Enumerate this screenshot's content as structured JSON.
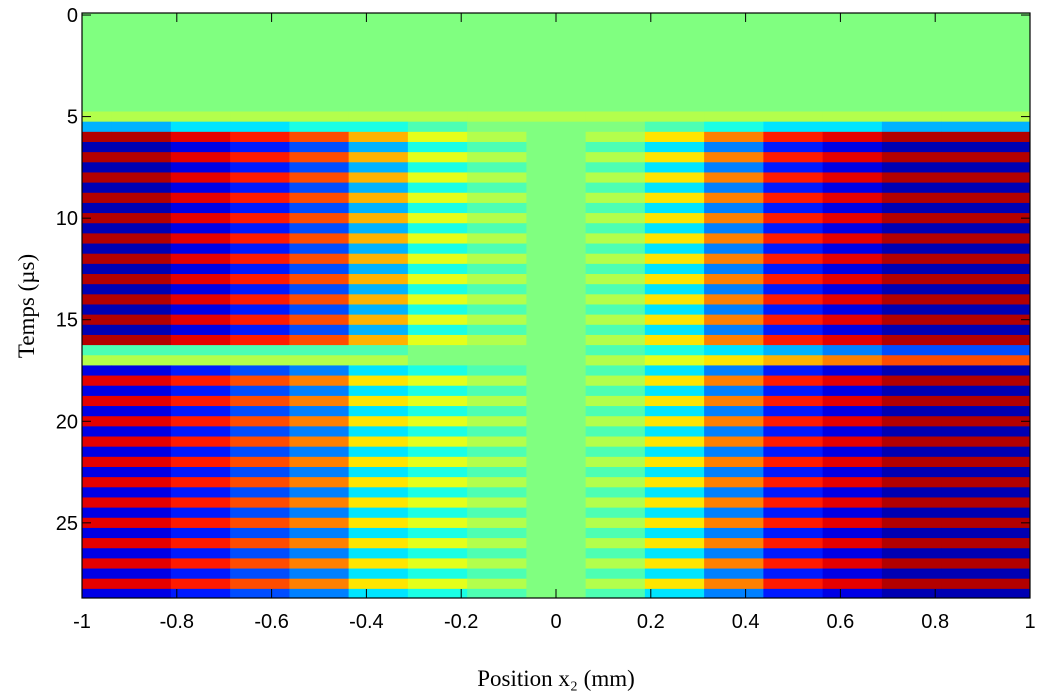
{
  "chart_data": {
    "type": "heatmap",
    "xlabel": "Position x₂ (mm)",
    "ylabel": "Temps (µs)",
    "colormap": "jet",
    "clim": [
      -1,
      1
    ],
    "xlim": [
      -1,
      1
    ],
    "ylim": [
      -0.1,
      28.7
    ],
    "y_reversed": true,
    "xticks": [
      -1,
      -0.8,
      -0.6,
      -0.4,
      -0.2,
      0,
      0.2,
      0.4,
      0.6,
      0.8,
      1
    ],
    "yticks": [
      0,
      5,
      10,
      15,
      20,
      25
    ],
    "x": [
      -1,
      -0.875,
      -0.75,
      -0.625,
      -0.5,
      -0.375,
      -0.25,
      -0.125,
      0,
      0.125,
      0.25,
      0.375,
      0.5,
      0.625,
      0.75,
      0.875,
      1
    ],
    "y": [
      0,
      0.5,
      1,
      1.5,
      2,
      2.5,
      3,
      3.5,
      4,
      4.5,
      5,
      5.5,
      6,
      6.5,
      7,
      7.5,
      8,
      8.5,
      9,
      9.5,
      10,
      10.5,
      11,
      11.5,
      12,
      12.5,
      13,
      13.5,
      14,
      14.5,
      15,
      15.5,
      16,
      16.5,
      17,
      17.5,
      18,
      18.5,
      19,
      19.5,
      20,
      20.5,
      21,
      21.5,
      22,
      22.5,
      23,
      23.5,
      24,
      24.5,
      25,
      25.5,
      26,
      26.5,
      27,
      27.5,
      28,
      28.5
    ],
    "z": [
      [
        0,
        0,
        0,
        0,
        0,
        0,
        0,
        0,
        0,
        0,
        0,
        0,
        0,
        0,
        0,
        0,
        0
      ],
      [
        0,
        0,
        0,
        0,
        0,
        0,
        0,
        0,
        0,
        0,
        0,
        0,
        0,
        0,
        0,
        0,
        0
      ],
      [
        0,
        0,
        0,
        0,
        0,
        0,
        0,
        0,
        0,
        0,
        0,
        0,
        0,
        0,
        0,
        0,
        0
      ],
      [
        0,
        0,
        0,
        0,
        0,
        0,
        0,
        0,
        0,
        0,
        0,
        0,
        0,
        0,
        0,
        0,
        0
      ],
      [
        0,
        0,
        0,
        0,
        0,
        0,
        0,
        0,
        0,
        0,
        0,
        0,
        0,
        0,
        0,
        0,
        0
      ],
      [
        0,
        0,
        0,
        0,
        0,
        0,
        0,
        0,
        0,
        0,
        0,
        0,
        0,
        0,
        0,
        0,
        0
      ],
      [
        0,
        0,
        0,
        0,
        0,
        0,
        0,
        0,
        0,
        0,
        0,
        0,
        0,
        0,
        0,
        0,
        0
      ],
      [
        0,
        0,
        0,
        0,
        0,
        0,
        0,
        0,
        0,
        0,
        0,
        0,
        0,
        0,
        0,
        0,
        0
      ],
      [
        0,
        0,
        0,
        0,
        0,
        0,
        0,
        0,
        0,
        0,
        0,
        0,
        0,
        0,
        0,
        0,
        0
      ],
      [
        0,
        0,
        0,
        0,
        0,
        0,
        0,
        0,
        0,
        0,
        0,
        0,
        0,
        0,
        0,
        0,
        0
      ],
      [
        0.1,
        0.1,
        0.1,
        0.1,
        0.1,
        0.1,
        0.1,
        0.1,
        0.1,
        0.1,
        0.1,
        0.1,
        0.1,
        0.1,
        0.1,
        0.1,
        0.1
      ],
      [
        -0.4,
        -0.4,
        -0.3,
        -0.3,
        -0.2,
        -0.2,
        -0.1,
        0,
        0,
        0,
        -0.1,
        -0.2,
        -0.3,
        -0.3,
        -0.4,
        -0.4,
        -0.4
      ],
      [
        0.9,
        0.9,
        0.8,
        0.7,
        0.6,
        0.4,
        0.2,
        0.1,
        0,
        0.1,
        0.3,
        0.5,
        0.7,
        0.8,
        0.9,
        0.9,
        0.9
      ],
      [
        -0.9,
        -0.9,
        -0.8,
        -0.7,
        -0.6,
        -0.4,
        -0.2,
        -0.1,
        0,
        -0.1,
        -0.3,
        -0.5,
        -0.7,
        -0.8,
        -0.9,
        -0.9,
        -0.9
      ],
      [
        0.9,
        0.9,
        0.8,
        0.7,
        0.6,
        0.4,
        0.2,
        0.1,
        0,
        0.1,
        0.3,
        0.5,
        0.7,
        0.8,
        0.9,
        0.9,
        0.9
      ],
      [
        -0.9,
        -0.9,
        -0.8,
        -0.7,
        -0.6,
        -0.4,
        -0.2,
        -0.1,
        0,
        -0.1,
        -0.3,
        -0.5,
        -0.7,
        -0.8,
        -0.9,
        -0.9,
        -0.9
      ],
      [
        0.9,
        0.9,
        0.8,
        0.7,
        0.6,
        0.4,
        0.2,
        0.1,
        0,
        0.1,
        0.3,
        0.5,
        0.7,
        0.8,
        0.9,
        0.9,
        0.9
      ],
      [
        -0.9,
        -0.9,
        -0.8,
        -0.7,
        -0.6,
        -0.4,
        -0.2,
        -0.1,
        0,
        -0.1,
        -0.3,
        -0.5,
        -0.7,
        -0.8,
        -0.9,
        -0.9,
        -0.9
      ],
      [
        0.9,
        0.9,
        0.8,
        0.7,
        0.6,
        0.4,
        0.2,
        0.1,
        0,
        0.1,
        0.3,
        0.5,
        0.7,
        0.8,
        0.9,
        0.9,
        0.9
      ],
      [
        -0.9,
        -0.9,
        -0.8,
        -0.7,
        -0.6,
        -0.4,
        -0.2,
        -0.1,
        0,
        -0.1,
        -0.3,
        -0.5,
        -0.7,
        -0.8,
        -0.9,
        -0.9,
        -0.9
      ],
      [
        0.9,
        0.9,
        0.8,
        0.7,
        0.6,
        0.4,
        0.2,
        0.1,
        0,
        0.1,
        0.3,
        0.5,
        0.7,
        0.8,
        0.9,
        0.9,
        0.9
      ],
      [
        -0.9,
        -0.9,
        -0.8,
        -0.7,
        -0.6,
        -0.4,
        -0.2,
        -0.1,
        0,
        -0.1,
        -0.3,
        -0.5,
        -0.7,
        -0.8,
        -0.9,
        -0.9,
        -0.9
      ],
      [
        0.9,
        0.9,
        0.8,
        0.7,
        0.6,
        0.4,
        0.2,
        0.1,
        0,
        0.1,
        0.3,
        0.5,
        0.7,
        0.8,
        0.9,
        0.9,
        0.9
      ],
      [
        -0.9,
        -0.9,
        -0.8,
        -0.7,
        -0.6,
        -0.4,
        -0.2,
        -0.1,
        0,
        -0.1,
        -0.3,
        -0.5,
        -0.7,
        -0.8,
        -0.9,
        -0.9,
        -0.9
      ],
      [
        0.9,
        0.9,
        0.8,
        0.7,
        0.6,
        0.4,
        0.2,
        0.1,
        0,
        0.1,
        0.3,
        0.5,
        0.7,
        0.8,
        0.9,
        0.9,
        0.9
      ],
      [
        -0.9,
        -0.9,
        -0.8,
        -0.7,
        -0.6,
        -0.4,
        -0.2,
        -0.1,
        0,
        -0.1,
        -0.3,
        -0.5,
        -0.7,
        -0.8,
        -0.9,
        -0.9,
        -0.9
      ],
      [
        0.9,
        0.9,
        0.8,
        0.7,
        0.6,
        0.4,
        0.2,
        0.1,
        0,
        0.1,
        0.3,
        0.5,
        0.7,
        0.8,
        0.9,
        0.9,
        0.9
      ],
      [
        -0.9,
        -0.9,
        -0.8,
        -0.7,
        -0.6,
        -0.4,
        -0.2,
        -0.1,
        0,
        -0.1,
        -0.3,
        -0.5,
        -0.7,
        -0.8,
        -0.9,
        -0.9,
        -0.9
      ],
      [
        0.9,
        0.9,
        0.8,
        0.7,
        0.6,
        0.4,
        0.2,
        0.1,
        0,
        0.1,
        0.3,
        0.5,
        0.7,
        0.8,
        0.9,
        0.9,
        0.9
      ],
      [
        -0.9,
        -0.9,
        -0.8,
        -0.7,
        -0.6,
        -0.4,
        -0.2,
        -0.1,
        0,
        -0.1,
        -0.3,
        -0.5,
        -0.7,
        -0.8,
        -0.9,
        -0.9,
        -0.9
      ],
      [
        0.9,
        0.9,
        0.8,
        0.7,
        0.6,
        0.4,
        0.2,
        0.1,
        0,
        0.1,
        0.3,
        0.5,
        0.7,
        0.8,
        0.9,
        0.9,
        0.9
      ],
      [
        -0.9,
        -0.9,
        -0.8,
        -0.7,
        -0.6,
        -0.4,
        -0.2,
        -0.1,
        0,
        -0.1,
        -0.3,
        -0.5,
        -0.7,
        -0.8,
        -0.9,
        -0.9,
        -0.9
      ],
      [
        0.9,
        0.9,
        0.8,
        0.7,
        0.6,
        0.4,
        0.2,
        0.1,
        0,
        0.1,
        0.3,
        0.5,
        0.7,
        0.8,
        0.9,
        0.9,
        0.9
      ],
      [
        -0.1,
        -0.1,
        -0.1,
        -0.1,
        -0.1,
        -0.1,
        0,
        0,
        0,
        -0.1,
        -0.2,
        -0.3,
        -0.4,
        -0.5,
        -0.6,
        -0.6,
        -0.6
      ],
      [
        0.1,
        0.1,
        0.1,
        0.1,
        0.1,
        0.1,
        0,
        0,
        0,
        0.1,
        0.2,
        0.3,
        0.4,
        0.5,
        0.6,
        0.6,
        0.6
      ],
      [
        -0.8,
        -0.8,
        -0.7,
        -0.6,
        -0.5,
        -0.3,
        -0.2,
        -0.1,
        0,
        -0.1,
        -0.3,
        -0.5,
        -0.7,
        -0.8,
        -0.9,
        -0.9,
        -0.9
      ],
      [
        0.8,
        0.8,
        0.7,
        0.6,
        0.5,
        0.3,
        0.2,
        0.1,
        0,
        0.1,
        0.3,
        0.5,
        0.7,
        0.8,
        0.9,
        0.9,
        0.9
      ],
      [
        -0.8,
        -0.8,
        -0.7,
        -0.6,
        -0.5,
        -0.3,
        -0.2,
        -0.1,
        0,
        -0.1,
        -0.3,
        -0.5,
        -0.7,
        -0.8,
        -0.9,
        -0.9,
        -0.9
      ],
      [
        0.8,
        0.8,
        0.7,
        0.6,
        0.5,
        0.3,
        0.2,
        0.1,
        0,
        0.1,
        0.3,
        0.5,
        0.7,
        0.8,
        0.9,
        0.9,
        0.9
      ],
      [
        -0.8,
        -0.8,
        -0.7,
        -0.6,
        -0.5,
        -0.3,
        -0.2,
        -0.1,
        0,
        -0.1,
        -0.3,
        -0.5,
        -0.7,
        -0.8,
        -0.9,
        -0.9,
        -0.9
      ],
      [
        0.8,
        0.8,
        0.7,
        0.6,
        0.5,
        0.3,
        0.2,
        0.1,
        0,
        0.1,
        0.3,
        0.5,
        0.7,
        0.8,
        0.9,
        0.9,
        0.9
      ],
      [
        -0.8,
        -0.8,
        -0.7,
        -0.6,
        -0.5,
        -0.3,
        -0.2,
        -0.1,
        0,
        -0.1,
        -0.3,
        -0.5,
        -0.7,
        -0.8,
        -0.9,
        -0.9,
        -0.9
      ],
      [
        0.8,
        0.8,
        0.7,
        0.6,
        0.5,
        0.3,
        0.2,
        0.1,
        0,
        0.1,
        0.3,
        0.5,
        0.7,
        0.8,
        0.9,
        0.9,
        0.9
      ],
      [
        -0.8,
        -0.8,
        -0.7,
        -0.6,
        -0.5,
        -0.3,
        -0.2,
        -0.1,
        0,
        -0.1,
        -0.3,
        -0.5,
        -0.7,
        -0.8,
        -0.9,
        -0.9,
        -0.9
      ],
      [
        0.8,
        0.8,
        0.7,
        0.6,
        0.5,
        0.3,
        0.2,
        0.1,
        0,
        0.1,
        0.3,
        0.5,
        0.7,
        0.8,
        0.9,
        0.9,
        0.9
      ],
      [
        -0.8,
        -0.8,
        -0.7,
        -0.6,
        -0.5,
        -0.3,
        -0.2,
        -0.1,
        0,
        -0.1,
        -0.3,
        -0.5,
        -0.7,
        -0.8,
        -0.9,
        -0.9,
        -0.9
      ],
      [
        0.8,
        0.8,
        0.7,
        0.6,
        0.5,
        0.3,
        0.2,
        0.1,
        0,
        0.1,
        0.3,
        0.5,
        0.7,
        0.8,
        0.9,
        0.9,
        0.9
      ],
      [
        -0.8,
        -0.8,
        -0.7,
        -0.6,
        -0.5,
        -0.3,
        -0.2,
        -0.1,
        0,
        -0.1,
        -0.3,
        -0.5,
        -0.7,
        -0.8,
        -0.9,
        -0.9,
        -0.9
      ],
      [
        0.8,
        0.8,
        0.7,
        0.6,
        0.5,
        0.3,
        0.2,
        0.1,
        0,
        0.1,
        0.3,
        0.5,
        0.7,
        0.8,
        0.9,
        0.9,
        0.9
      ],
      [
        -0.8,
        -0.8,
        -0.7,
        -0.6,
        -0.5,
        -0.3,
        -0.2,
        -0.1,
        0,
        -0.1,
        -0.3,
        -0.5,
        -0.7,
        -0.8,
        -0.9,
        -0.9,
        -0.9
      ],
      [
        0.8,
        0.8,
        0.7,
        0.6,
        0.5,
        0.3,
        0.2,
        0.1,
        0,
        0.1,
        0.3,
        0.5,
        0.7,
        0.8,
        0.9,
        0.9,
        0.9
      ],
      [
        -0.8,
        -0.8,
        -0.7,
        -0.6,
        -0.5,
        -0.3,
        -0.2,
        -0.1,
        0,
        -0.1,
        -0.3,
        -0.5,
        -0.7,
        -0.8,
        -0.9,
        -0.9,
        -0.9
      ],
      [
        0.8,
        0.8,
        0.7,
        0.6,
        0.5,
        0.3,
        0.2,
        0.1,
        0,
        0.1,
        0.3,
        0.5,
        0.7,
        0.8,
        0.9,
        0.9,
        0.9
      ],
      [
        -0.8,
        -0.8,
        -0.7,
        -0.6,
        -0.5,
        -0.3,
        -0.2,
        -0.1,
        0,
        -0.1,
        -0.3,
        -0.5,
        -0.7,
        -0.8,
        -0.9,
        -0.9,
        -0.9
      ],
      [
        0.8,
        0.8,
        0.7,
        0.6,
        0.5,
        0.3,
        0.2,
        0.1,
        0,
        0.1,
        0.3,
        0.5,
        0.7,
        0.8,
        0.9,
        0.9,
        0.9
      ],
      [
        -0.8,
        -0.8,
        -0.7,
        -0.6,
        -0.5,
        -0.3,
        -0.2,
        -0.1,
        0,
        -0.1,
        -0.3,
        -0.5,
        -0.7,
        -0.8,
        -0.9,
        -0.9,
        -0.9
      ],
      [
        0.8,
        0.8,
        0.7,
        0.6,
        0.5,
        0.3,
        0.2,
        0.1,
        0,
        0.1,
        0.3,
        0.5,
        0.7,
        0.8,
        0.9,
        0.9,
        0.9
      ],
      [
        -0.8,
        -0.8,
        -0.7,
        -0.6,
        -0.5,
        -0.3,
        -0.2,
        -0.1,
        0,
        -0.1,
        -0.3,
        -0.5,
        -0.7,
        -0.8,
        -0.9,
        -0.9,
        -0.9
      ]
    ]
  }
}
